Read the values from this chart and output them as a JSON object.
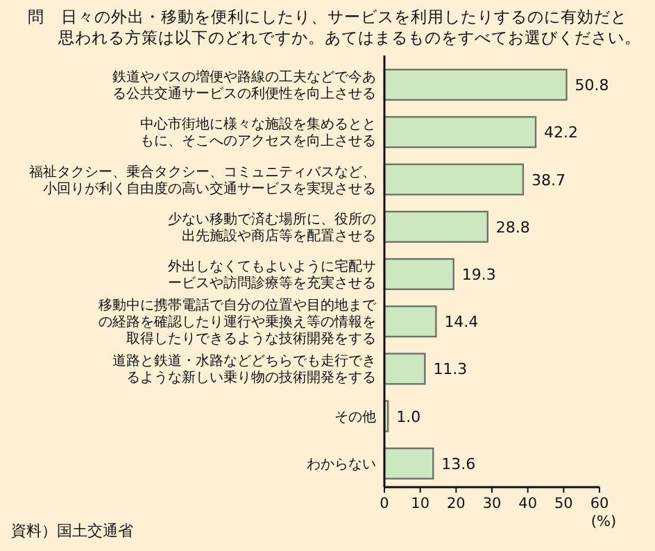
{
  "chart_data": {
    "type": "bar",
    "orientation": "horizontal",
    "title": "問　日々の外出・移動を便利にしたり、サービスを利用したりするのに有効だと思われる方策は以下のどれですか。あてはまるものをすべてお選びください。",
    "categories": [
      "鉄道やバスの増便や路線の工夫などで今ある公共交通サービスの利便性を向上させる",
      "中心市街地に様々な施設を集めるとともに、そこへのアクセスを向上させる",
      "福祉タクシー、乗合タクシー、コミュニティバスなど、小回りが利く自由度の高い交通サービスを実現させる",
      "少ない移動で済む場所に、役所の出先施設や商店等を配置させる",
      "外出しなくてもよいように宅配サービスや訪問診療等を充実させる",
      "移動中に携帯電話で自分の位置や目的地までの経路を確認したり運行や乗換え等の情報を取得したりできるような技術開発をする",
      "道路と鉄道・水路などどちらでも走行できるような新しい乗り物の技術開発をする",
      "その他",
      "わからない"
    ],
    "values": [
      50.8,
      42.2,
      38.7,
      28.8,
      19.3,
      14.4,
      11.3,
      1.0,
      13.6
    ],
    "value_labels": [
      "50.8",
      "42.2",
      "38.7",
      "28.8",
      "19.3",
      "14.4",
      "11.3",
      "1.0",
      "13.6"
    ],
    "color": "#cde8c0",
    "xlim": [
      0,
      60
    ],
    "xticks": [
      0,
      10,
      20,
      30,
      40,
      50,
      60
    ],
    "xlabel": "(%)",
    "grid": false,
    "annotations": [
      "資料）国土交通省"
    ]
  }
}
